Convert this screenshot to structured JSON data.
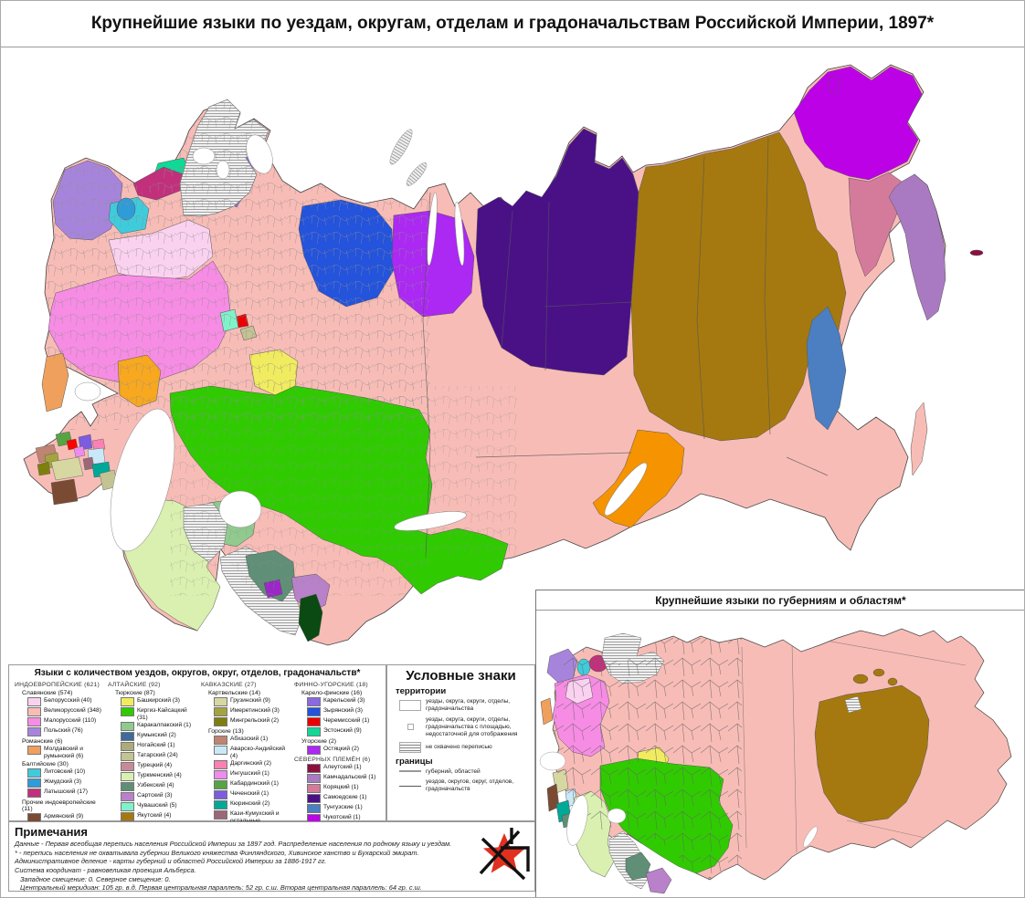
{
  "title": "Крупнейшие языки по уездам, округам, отделам и градоначальствам Российской Империи, 1897*",
  "inset": {
    "title": "Крупнейшие языки по губерниям и областям*"
  },
  "palette": {
    "belarusian": "#FAD2F0",
    "russian": "#F8BCB6",
    "ukrainian": "#F78CE4",
    "polish": "#A784DC",
    "moldavian": "#EFA05C",
    "lithuanian": "#3ECCDC",
    "zhmud": "#2D9CD8",
    "latvian": "#C2307C",
    "armenian": "#7B4A33",
    "ossetian": "#FE0000",
    "tajik": "#9B27C6",
    "bashkir": "#F1EC5F",
    "kirghiz": "#2FCB00",
    "karakalpak": "#90CA8E",
    "kumyk": "#3E6B9A",
    "nogai": "#ABAB7B",
    "tatar": "#C3C393",
    "turkish": "#C98A98",
    "turkmen": "#DAF0B0",
    "uzbek": "#5F8F76",
    "sart": "#B981CA",
    "chuvash": "#80F2C9",
    "yakut": "#A5790F",
    "other_turkic": "#0B4A12",
    "buryat": "#F59300",
    "kalmyk": "#F8A81F",
    "georgian": "#D7D7A2",
    "imeretian": "#A4A43E",
    "mingrelian": "#7F7F10",
    "abkhaz": "#BF8472",
    "avar": "#C9E9F8",
    "dargin": "#F981B3",
    "ingush": "#EE8BEE",
    "kabardian": "#57A445",
    "chechen": "#7C5CDF",
    "kyurin": "#00A897",
    "kazikumukh": "#9B6877",
    "karelian": "#8A69E1",
    "zyryan": "#2453DC",
    "cheremis": "#E90000",
    "estonian": "#0FD996",
    "ostyak": "#AC28F3",
    "aleut": "#8B1040",
    "kamchadal": "#A97AC1",
    "koryak": "#D47B9B",
    "samoyed": "#4A1187",
    "tungus": "#4B7FC1",
    "chukchi": "#BC01E7",
    "not_covered": "#F1F1F1"
  },
  "legend": {
    "title": "Языки с количеством уездов, округов, округ, отделов, градоначальств*",
    "columns": [
      {
        "families": [
          {
            "name": "ИНДОЕВРОПЕЙСКИЕ (621)",
            "groups": [
              {
                "name": "Славянские (574)",
                "items": [
                  {
                    "label": "Белорусский (40)",
                    "key": "belarusian"
                  },
                  {
                    "label": "Великорусский (348)",
                    "key": "russian"
                  },
                  {
                    "label": "Малорусский (110)",
                    "key": "ukrainian"
                  },
                  {
                    "label": "Польский (76)",
                    "key": "polish"
                  }
                ]
              },
              {
                "name": "Романские (6)",
                "items": [
                  {
                    "label": "Молдавский и румынский (6)",
                    "key": "moldavian"
                  }
                ]
              },
              {
                "name": "Балтийские (30)",
                "items": [
                  {
                    "label": "Литовский (10)",
                    "key": "lithuanian"
                  },
                  {
                    "label": "Жмудский (3)",
                    "key": "zhmud"
                  },
                  {
                    "label": "Латышский (17)",
                    "key": "latvian"
                  }
                ]
              },
              {
                "name": "Прочие индоевропейские (11)",
                "items": [
                  {
                    "label": "Армянский (9)",
                    "key": "armenian"
                  },
                  {
                    "label": "Осетинский (1)",
                    "key": "ossetian"
                  },
                  {
                    "label": "Таджикский (1)",
                    "key": "tajik"
                  }
                ]
              }
            ]
          }
        ]
      },
      {
        "families": [
          {
            "name": "АЛТАЙСКИЕ (92)",
            "groups": [
              {
                "name": "Тюркские (87)",
                "items": [
                  {
                    "label": "Башкирский (3)",
                    "key": "bashkir"
                  },
                  {
                    "label": "Киргиз-Кайсацкий (31)",
                    "key": "kirghiz"
                  },
                  {
                    "label": "Каракалпакский (1)",
                    "key": "karakalpak"
                  },
                  {
                    "label": "Кумыкский (2)",
                    "key": "kumyk"
                  },
                  {
                    "label": "Ногайский (1)",
                    "key": "nogai"
                  },
                  {
                    "label": "Татарский (24)",
                    "key": "tatar"
                  },
                  {
                    "label": "Турецкий (4)",
                    "key": "turkish"
                  },
                  {
                    "label": "Туркменский (4)",
                    "key": "turkmen"
                  },
                  {
                    "label": "Узбекский (4)",
                    "key": "uzbek"
                  },
                  {
                    "label": "Сартский (3)",
                    "key": "sart"
                  },
                  {
                    "label": "Чувашский (5)",
                    "key": "chuvash"
                  },
                  {
                    "label": "Якутский (4)",
                    "key": "yakut"
                  },
                  {
                    "label": "Прочие тюркские (1)",
                    "key": "other_turkic"
                  }
                ]
              },
              {
                "name": "Монгольские (5)",
                "items": [
                  {
                    "label": "Бурятский (2)",
                    "key": "buryat"
                  },
                  {
                    "label": "Калмыцкий (3)",
                    "key": "kalmyk"
                  }
                ]
              }
            ]
          }
        ]
      },
      {
        "families": [
          {
            "name": "КАВКАЗСКИЕ (27)",
            "groups": [
              {
                "name": "Картвельские (14)",
                "items": [
                  {
                    "label": "Грузинский (9)",
                    "key": "georgian"
                  },
                  {
                    "label": "Имеретинский (3)",
                    "key": "imeretian"
                  },
                  {
                    "label": "Мингрельский (2)",
                    "key": "mingrelian"
                  }
                ]
              },
              {
                "name": "Горские (13)",
                "items": [
                  {
                    "label": "Абхазский (1)",
                    "key": "abkhaz"
                  },
                  {
                    "label": "Аварско-Андийский (4)",
                    "key": "avar"
                  },
                  {
                    "label": "Даргинский (2)",
                    "key": "dargin"
                  },
                  {
                    "label": "Ингушский (1)",
                    "key": "ingush"
                  },
                  {
                    "label": "Кабардинский (1)",
                    "key": "kabardian"
                  },
                  {
                    "label": "Чеченский (1)",
                    "key": "chechen"
                  },
                  {
                    "label": "Кюринский (2)",
                    "key": "kyurin"
                  },
                  {
                    "label": "Кази-Кумухский и остальные лезгинские (1)",
                    "key": "kazikumukh"
                  }
                ]
              }
            ]
          }
        ]
      },
      {
        "families": [
          {
            "name": "ФИННО-УГОРСКИЕ (18)",
            "groups": [
              {
                "name": "Карело-финские (16)",
                "items": [
                  {
                    "label": "Карельский (3)",
                    "key": "karelian"
                  },
                  {
                    "label": "Зырянский (3)",
                    "key": "zyryan"
                  },
                  {
                    "label": "Черемисский (1)",
                    "key": "cheremis"
                  },
                  {
                    "label": "Эстонский (9)",
                    "key": "estonian"
                  }
                ]
              },
              {
                "name": "Угорские (2)",
                "items": [
                  {
                    "label": "Остяцкий (2)",
                    "key": "ostyak"
                  }
                ]
              }
            ]
          },
          {
            "name": "СЕВЕРНЫХ ПЛЕМЁН (6)",
            "groups": [
              {
                "name": "",
                "items": [
                  {
                    "label": "Алеутский (1)",
                    "key": "aleut"
                  },
                  {
                    "label": "Камчадальский (1)",
                    "key": "kamchadal"
                  },
                  {
                    "label": "Коряцкий (1)",
                    "key": "koryak"
                  },
                  {
                    "label": "Самоедские (1)",
                    "key": "samoyed"
                  },
                  {
                    "label": "Тунгузские (1)",
                    "key": "tungus"
                  },
                  {
                    "label": "Чукотский (1)",
                    "key": "chukchi"
                  }
                ]
              }
            ]
          }
        ]
      }
    ]
  },
  "symbols": {
    "title": "Условные знаки",
    "territories_heading": "территории",
    "territories": [
      {
        "label": "уезды, округа, округи, отделы, градоначальства",
        "swatch": "plain"
      },
      {
        "label": "уезды, округа, округи, отделы, градоначальства с площадью, недостаточной для отображения",
        "swatch": "dot"
      },
      {
        "label": "не охвачено переписью",
        "swatch": "hatch"
      }
    ],
    "borders_heading": "границы",
    "borders": [
      {
        "label": "губерний, областей",
        "swatch": "line-thick"
      },
      {
        "label": "уездов, округов, округ, отделов, градоначальств",
        "swatch": "line-thin"
      }
    ]
  },
  "notes": {
    "title": "Примечания",
    "lines": [
      {
        "text": "Данные - Первая всеобщая перепись населения Российской Империи за 1897 год. Распределение населения по родному языку и уездам.",
        "indent": false
      },
      {
        "text": "* - перепись населения не охватывала губернии Великого княжества Финляндского, Хивинское ханство и Бухарский эмират.",
        "indent": false
      },
      {
        "text": "Административное деление - карты губерний и областей Российской Империи за 1886-1917 гг.",
        "indent": false
      },
      {
        "text": "Система координат - равновеликая проекция Альберса.",
        "indent": false
      },
      {
        "text": "Западное смещение: 0. Северное смещение: 0.",
        "indent": true
      },
      {
        "text": "Центральный меридиан: 105 гр. в.д. Первая центральная параллель: 52 гр. с.ш. Вторая центральная параллель: 64 гр. с.ш.",
        "indent": true
      }
    ]
  }
}
